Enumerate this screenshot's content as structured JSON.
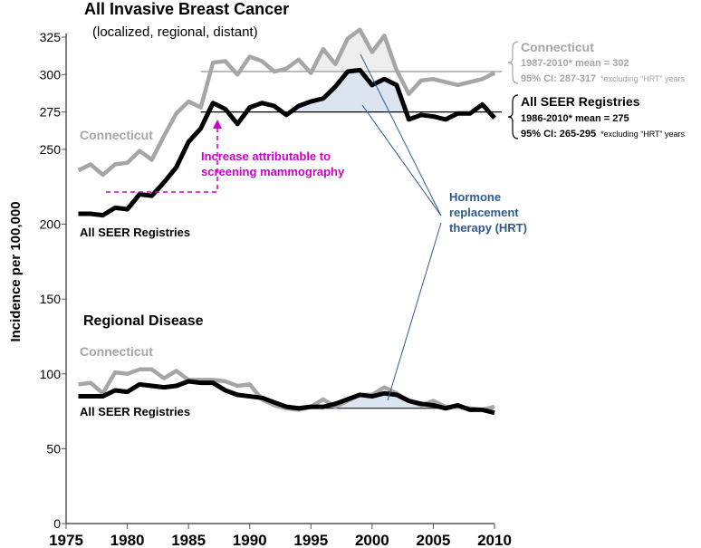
{
  "chart_data": {
    "type": "line",
    "title": "All Invasive Breast Cancer",
    "subtitle": "(localized, regional, distant)",
    "ylabel": "Incidence per 100,000",
    "xlabel": "",
    "xlim": [
      1975,
      2010
    ],
    "ylim": [
      0,
      325
    ],
    "xticks": [
      1975,
      1980,
      1985,
      1990,
      1995,
      2000,
      2005,
      2010
    ],
    "yticks": [
      0,
      50,
      100,
      150,
      200,
      250,
      275,
      300,
      325
    ],
    "years": [
      1976,
      1977,
      1978,
      1979,
      1980,
      1981,
      1982,
      1983,
      1984,
      1985,
      1986,
      1987,
      1988,
      1989,
      1990,
      1991,
      1992,
      1993,
      1994,
      1995,
      1996,
      1997,
      1998,
      1999,
      2000,
      2001,
      2002,
      2003,
      2004,
      2005,
      2006,
      2007,
      2008,
      2009,
      2010
    ],
    "series": [
      {
        "name": "Connecticut",
        "group": "all_invasive",
        "color": "#a6a6a6",
        "values": [
          236,
          240,
          233,
          240,
          241,
          249,
          243,
          259,
          274,
          282,
          278,
          308,
          309,
          300,
          312,
          309,
          302,
          304,
          310,
          301,
          317,
          307,
          324,
          330,
          315,
          326,
          303,
          287,
          296,
          297,
          295,
          293,
          295,
          297,
          301
        ]
      },
      {
        "name": "All SEER Registries",
        "group": "all_invasive",
        "color": "#000000",
        "values": [
          207,
          207,
          206,
          211,
          210,
          220,
          219,
          228,
          238,
          255,
          264,
          281,
          277,
          267,
          278,
          281,
          279,
          273,
          279,
          282,
          284,
          292,
          302,
          303,
          293,
          297,
          293,
          270,
          273,
          272,
          270,
          274,
          274,
          280,
          271
        ]
      },
      {
        "name": "Connecticut",
        "group": "regional",
        "color": "#a6a6a6",
        "values": [
          93,
          94,
          87,
          101,
          100,
          103,
          103,
          97,
          102,
          96,
          96,
          96,
          95,
          92,
          93,
          83,
          79,
          77,
          76,
          78,
          83,
          78,
          82,
          86,
          86,
          91,
          87,
          82,
          79,
          82,
          78,
          78,
          77,
          76,
          78
        ]
      },
      {
        "name": "All SEER Registries",
        "group": "regional",
        "color": "#000000",
        "values": [
          85,
          85,
          85,
          89,
          88,
          93,
          92,
          91,
          92,
          95,
          94,
          94,
          89,
          86,
          85,
          84,
          81,
          78,
          77,
          78,
          78,
          80,
          83,
          86,
          85,
          87,
          86,
          82,
          80,
          79,
          77,
          79,
          76,
          76,
          74
        ]
      }
    ],
    "mean_lines": [
      {
        "series": "Connecticut all invasive",
        "value": 302,
        "from": 1986,
        "to": 2010.3
      },
      {
        "series": "SEER all invasive",
        "value": 275,
        "from": 1986,
        "to": 2010.3
      },
      {
        "series": "SEER regional",
        "value": 77,
        "from": 1993,
        "to": 2008
      }
    ],
    "labels": {
      "ct_top": "Connecticut",
      "seer_top": "All SEER Registries",
      "regional_title": "Regional Disease",
      "ct_regional": "Connecticut",
      "seer_regional": "All SEER Registries",
      "screening_1": "Increase attributable to",
      "screening_2": "screening mammography",
      "hrt_1": "Hormone",
      "hrt_2": "replacement",
      "hrt_3": "therapy (HRT)"
    },
    "annotations": {
      "ct_name": "Connecticut",
      "ct_mean": "1987-2010*  mean = 302",
      "ct_ci": "95% CI: 287-317",
      "ct_note": "*excluding “HRT” years",
      "seer_name": "All SEER Registries",
      "seer_mean": "1986-2010*  mean = 275",
      "seer_ci": "95% CI: 265-295",
      "seer_note": "*excluding “HRT” years"
    },
    "colors": {
      "screening": "#cc00cc",
      "hrt": "#2f5b8c",
      "shade_seer": "#dbe5f1",
      "shade_ct": "#eeeeee"
    }
  }
}
